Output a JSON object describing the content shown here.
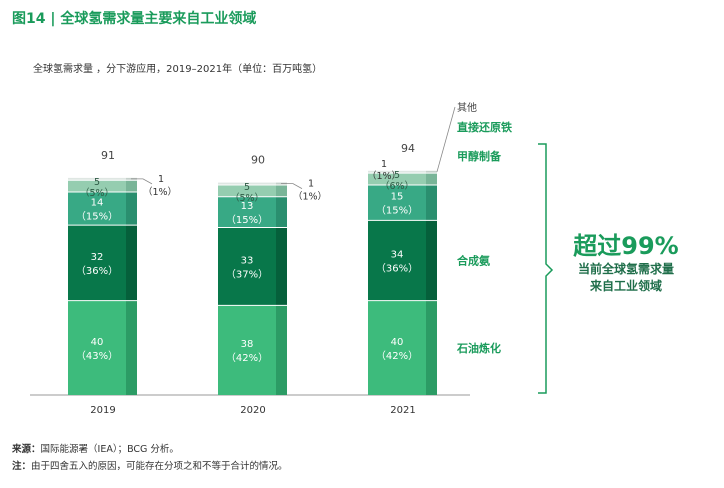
{
  "title": "图14 | 全球氢需求量主要来自工业领域",
  "subtitle": "全球氢需求量 ，分下游应用，2019–2021年（单位：百万吨氢）",
  "callout": {
    "big": "超过99%",
    "line1": "当前全球氢需求量",
    "line2": "来自工业领域"
  },
  "footer": {
    "source_label": "来源：",
    "source_text": "国际能源署（IEA）；BCG 分析。",
    "note_label": "注：",
    "note_text": "由于四舍五入的原因，可能存在分项之和不等于合计的情况。"
  },
  "colors": {
    "refining": "#3dbb7c",
    "ammonia": "#08774a",
    "methanol": "#38a985",
    "dri": "#95cdb0",
    "other": "#dfe7e3",
    "accent": "#1a9b5b"
  },
  "chart_data": {
    "type": "bar",
    "stacked": true,
    "categories": [
      "2019",
      "2020",
      "2021"
    ],
    "totals": [
      91,
      90,
      94
    ],
    "series": [
      {
        "name": "石油炼化",
        "values": [
          40,
          38,
          40
        ],
        "labels": [
          "40",
          "38",
          "40"
        ],
        "pct": [
          "（43%）",
          "（42%）",
          "（42%）"
        ]
      },
      {
        "name": "合成氨",
        "values": [
          32,
          33,
          34
        ],
        "labels": [
          "32",
          "33",
          "34"
        ],
        "pct": [
          "（36%）",
          "（37%）",
          "（36%）"
        ]
      },
      {
        "name": "甲醇制备",
        "values": [
          14,
          13,
          15
        ],
        "labels": [
          "14",
          "13",
          "15"
        ],
        "pct": [
          "（15%）",
          "（15%）",
          "（15%）"
        ]
      },
      {
        "name": "直接还原铁",
        "values": [
          5,
          5,
          5
        ],
        "labels": [
          "5",
          "5",
          "5"
        ],
        "pct": [
          "（5%）",
          "（5%）",
          "（6%）"
        ]
      },
      {
        "name": "其他",
        "values": [
          1,
          1,
          1
        ],
        "labels": [
          "1",
          "1",
          "1"
        ],
        "pct": [
          "（1%）",
          "（1%）",
          "（1%）"
        ]
      }
    ]
  }
}
